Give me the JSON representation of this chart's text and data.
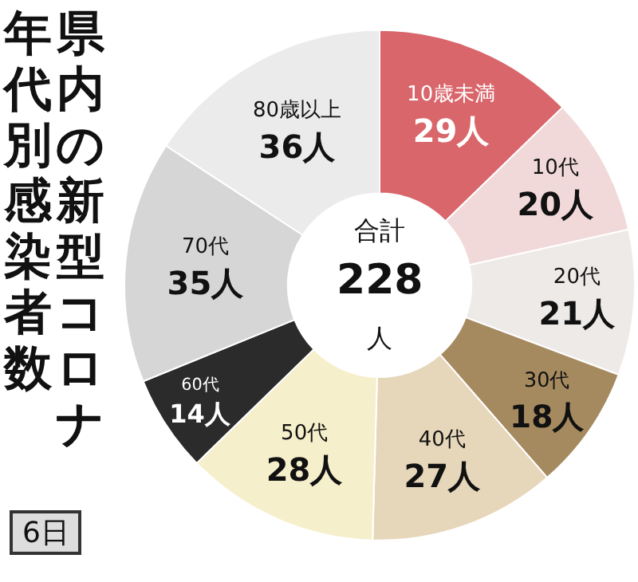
{
  "chart_data": {
    "type": "donut",
    "title": "県内の新型コロナ年代別感染者数",
    "subtitle": "6日",
    "categories": [
      "10歳未満",
      "10代",
      "20代",
      "30代",
      "40代",
      "50代",
      "60代",
      "70代",
      "80歳以上"
    ],
    "values": [
      29,
      20,
      21,
      18,
      27,
      28,
      14,
      35,
      36
    ],
    "value_labels": [
      "29人",
      "20人",
      "21人",
      "18人",
      "27人",
      "28人",
      "14人",
      "35人",
      "36人"
    ],
    "colors": [
      "#d9666b",
      "#f2d9d9",
      "#eeeae8",
      "#a68a5f",
      "#e6d6ba",
      "#f6efcb",
      "#2b2b2b",
      "#d6d6d6",
      "#ebebeb"
    ],
    "annotations": [
      "合計\n228\n人"
    ],
    "legend": false
  }
}
